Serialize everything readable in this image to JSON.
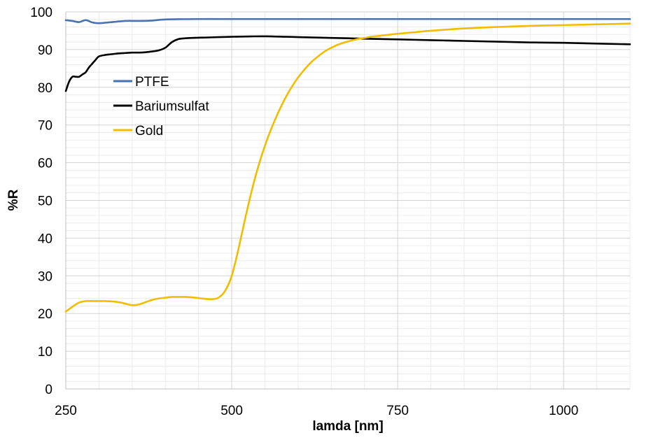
{
  "chart_data": {
    "type": "line",
    "xlabel": "lamda [nm]",
    "ylabel": "%R",
    "xlim": [
      250,
      1100
    ],
    "ylim": [
      0,
      100
    ],
    "x_ticks": [
      250,
      500,
      750,
      1000
    ],
    "x_tick_labels": [
      "250",
      "500",
      "750",
      "1000"
    ],
    "x_minor_step": 50,
    "y_ticks": [
      0,
      10,
      20,
      30,
      40,
      50,
      60,
      70,
      80,
      90,
      100
    ],
    "y_tick_labels": [
      "0",
      "10",
      "20",
      "30",
      "40",
      "50",
      "60",
      "70",
      "80",
      "90",
      "100"
    ],
    "y_minor_step": 2,
    "grid": true,
    "legend_position": "left",
    "series": [
      {
        "name": "PTFE",
        "color": "#4a72b0",
        "x": [
          250,
          260,
          270,
          280,
          290,
          300,
          320,
          340,
          360,
          380,
          400,
          450,
          500,
          600,
          700,
          800,
          900,
          1000,
          1100
        ],
        "y": [
          97.8,
          97.6,
          97.3,
          97.8,
          97.2,
          97.0,
          97.3,
          97.6,
          97.6,
          97.7,
          98.0,
          98.1,
          98.1,
          98.1,
          98.1,
          98.1,
          98.1,
          98.1,
          98.1
        ]
      },
      {
        "name": "Bariumsulfat",
        "color": "#000000",
        "x": [
          250,
          255,
          260,
          265,
          270,
          275,
          280,
          285,
          290,
          295,
          300,
          310,
          320,
          330,
          340,
          350,
          360,
          370,
          380,
          390,
          400,
          410,
          420,
          430,
          440,
          460,
          480,
          500,
          530,
          560,
          600,
          650,
          700,
          750,
          800,
          850,
          900,
          950,
          1000,
          1050,
          1100
        ],
        "y": [
          79.0,
          81.5,
          82.8,
          82.8,
          82.8,
          83.4,
          84.0,
          85.3,
          86.3,
          87.3,
          88.2,
          88.6,
          88.8,
          89.0,
          89.1,
          89.2,
          89.2,
          89.3,
          89.5,
          89.8,
          90.5,
          92.0,
          92.8,
          93.0,
          93.1,
          93.2,
          93.3,
          93.4,
          93.5,
          93.5,
          93.3,
          93.1,
          92.9,
          92.7,
          92.5,
          92.3,
          92.1,
          91.9,
          91.8,
          91.6,
          91.4
        ]
      },
      {
        "name": "Gold",
        "color": "#f2bd00",
        "x": [
          250,
          260,
          270,
          280,
          290,
          300,
          310,
          320,
          330,
          340,
          350,
          360,
          370,
          380,
          390,
          400,
          410,
          420,
          430,
          440,
          450,
          460,
          470,
          480,
          490,
          500,
          510,
          520,
          530,
          540,
          550,
          560,
          570,
          580,
          590,
          600,
          610,
          620,
          630,
          640,
          650,
          660,
          670,
          680,
          690,
          700,
          710,
          720,
          730,
          740,
          750,
          775,
          800,
          850,
          900,
          950,
          1000,
          1050,
          1100
        ],
        "y": [
          20.5,
          21.8,
          22.9,
          23.3,
          23.3,
          23.3,
          23.3,
          23.2,
          23.0,
          22.6,
          22.2,
          22.4,
          23.0,
          23.6,
          24.0,
          24.2,
          24.4,
          24.4,
          24.4,
          24.3,
          24.1,
          23.9,
          23.8,
          24.2,
          26.0,
          30.0,
          37.0,
          45.0,
          52.5,
          59.0,
          64.5,
          69.2,
          73.3,
          76.9,
          80.0,
          82.6,
          84.8,
          86.7,
          88.2,
          89.5,
          90.5,
          91.3,
          91.9,
          92.4,
          92.8,
          93.1,
          93.4,
          93.6,
          93.8,
          94.0,
          94.2,
          94.6,
          95.0,
          95.6,
          96.0,
          96.3,
          96.5,
          96.7,
          96.9
        ]
      }
    ]
  }
}
